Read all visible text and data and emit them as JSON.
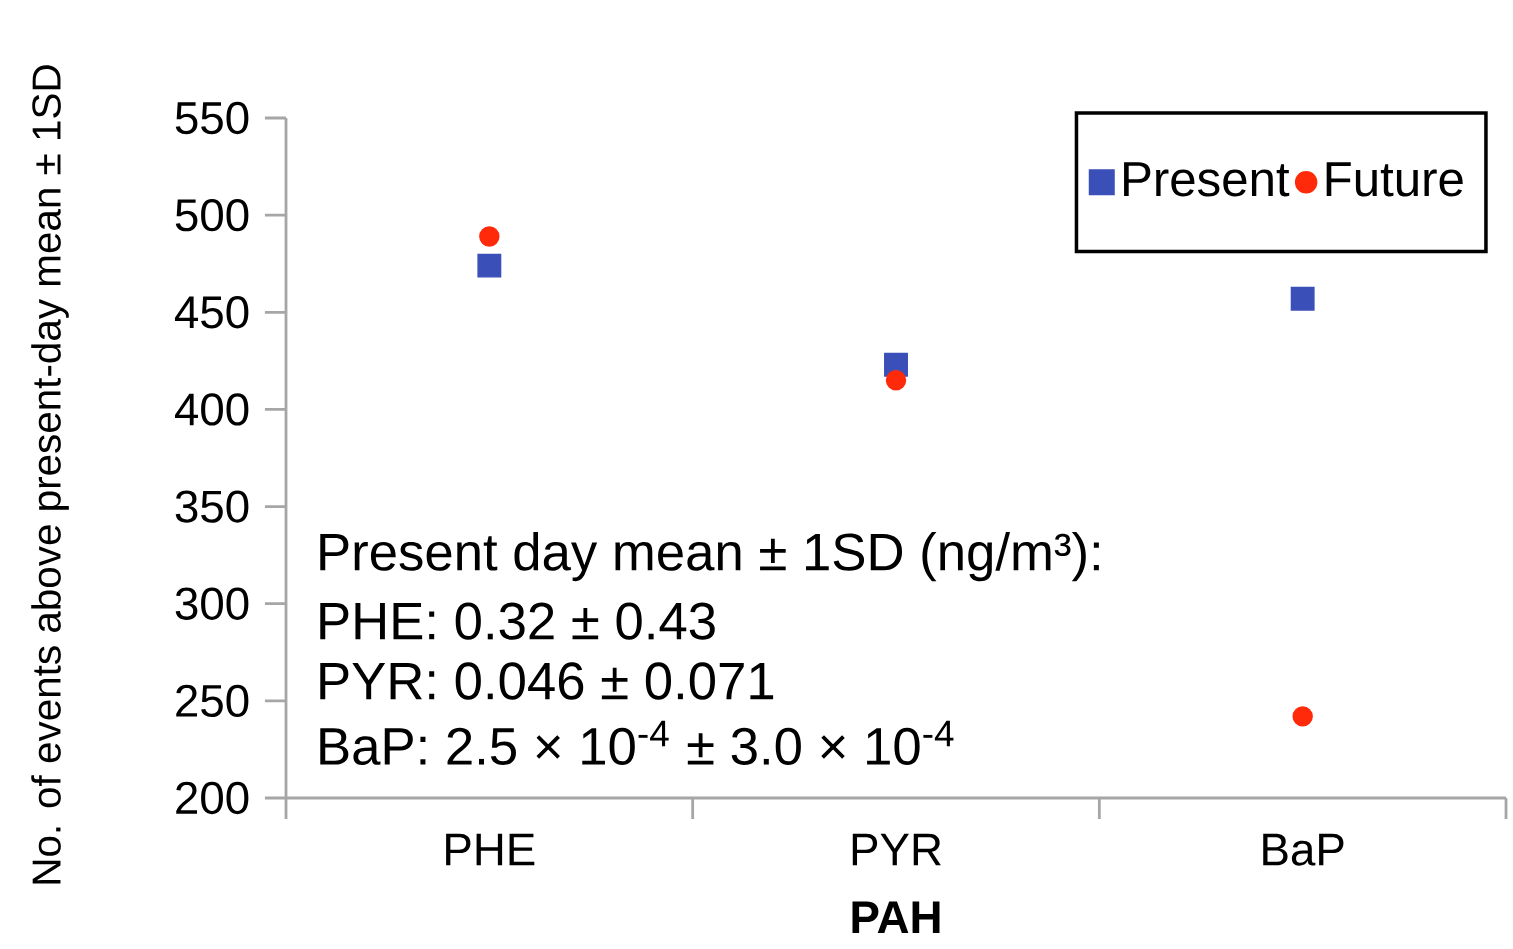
{
  "chart_data": {
    "type": "scatter",
    "xlabel": "PAH",
    "ylabel": "No. of events above present-day mean ± 1SD",
    "categories": [
      "PHE",
      "PYR",
      "BaP"
    ],
    "series": [
      {
        "name": "Present",
        "color": "#3b4fb8",
        "marker": "square",
        "values": [
          474,
          423,
          457
        ]
      },
      {
        "name": "Future",
        "color": "#ff2a0a",
        "marker": "circle",
        "values": [
          489,
          415,
          242
        ]
      }
    ],
    "ylim": [
      200,
      550
    ],
    "yticks": [
      200,
      250,
      300,
      350,
      400,
      450,
      500,
      550
    ],
    "grid": false,
    "legend": "top right",
    "annotations": [
      "Present day mean ± 1SD (ng/m³):",
      "PHE: 0.32 ± 0.43",
      "PYR: 0.046 ± 0.071",
      "BaP: 2.5 × 10$^{-4}$ ± 3.0 × 10$^{-4}$"
    ]
  }
}
